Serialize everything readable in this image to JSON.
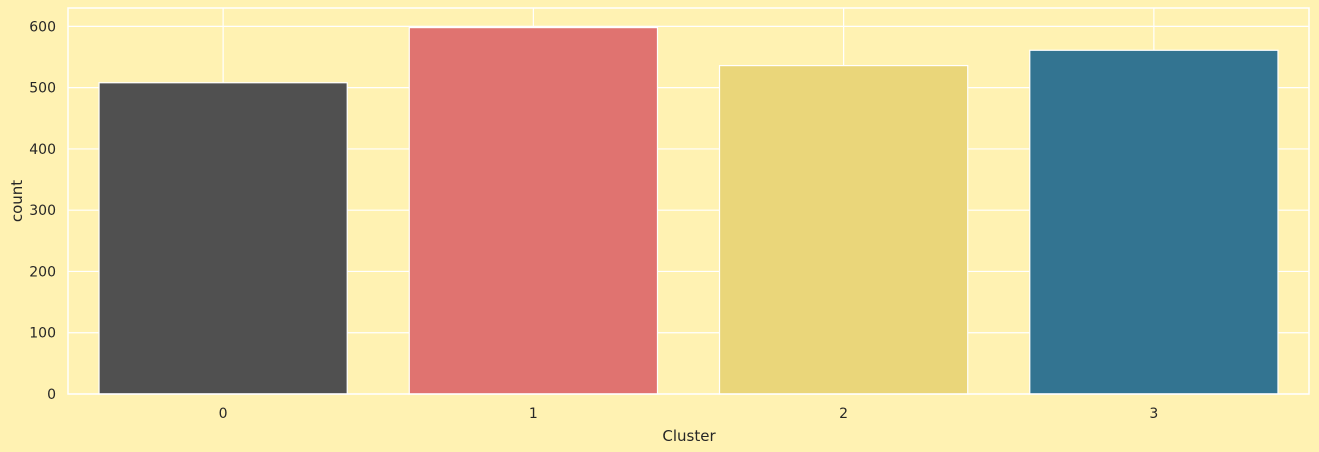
{
  "chart_data": {
    "type": "bar",
    "title": "",
    "xlabel": "Cluster",
    "ylabel": "count",
    "categories": [
      "0",
      "1",
      "2",
      "3"
    ],
    "values": [
      508,
      598,
      536,
      561
    ],
    "ylim": [
      0,
      630
    ],
    "yticks": [
      "0",
      "100",
      "200",
      "300",
      "400",
      "500",
      "600"
    ],
    "bar_colors": [
      "#505050",
      "#E07370",
      "#EAD67A",
      "#337491"
    ],
    "grid": true,
    "legend": "none"
  },
  "style": {
    "background": "#FFF2B2",
    "grid_color": "#FFFFFF",
    "text_color": "#262626"
  }
}
